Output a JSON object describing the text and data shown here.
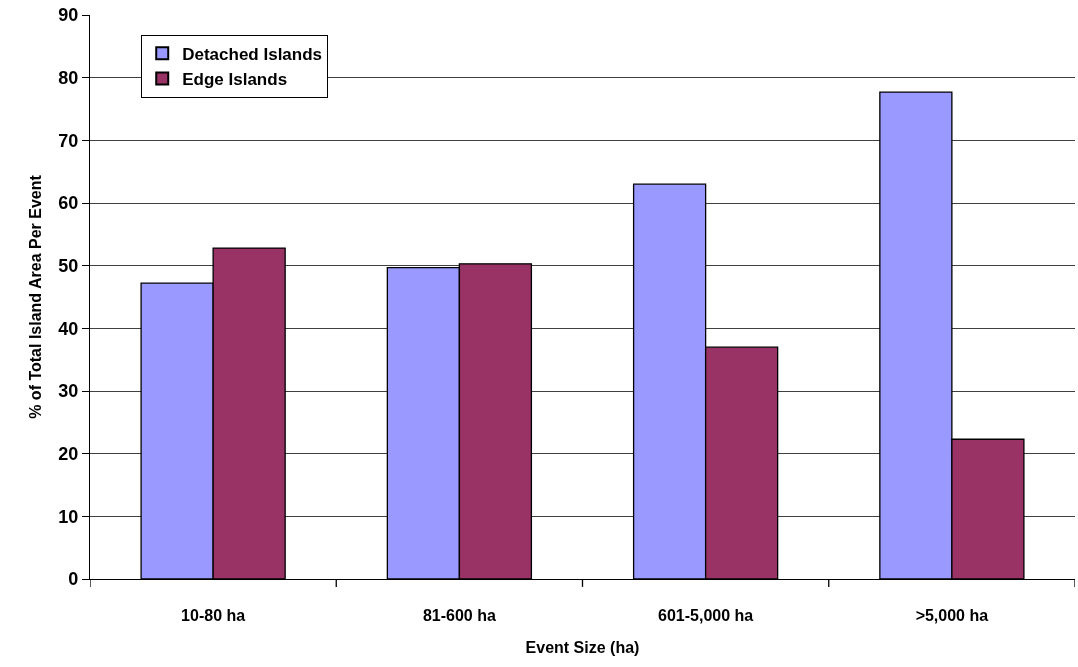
{
  "chart_data": {
    "type": "bar",
    "xlabel": "Event Size (ha)",
    "ylabel": "% of Total Island Area Per Event",
    "categories": [
      "10-80 ha",
      "81-600 ha",
      "601-5,000 ha",
      ">5,000 ha"
    ],
    "series": [
      {
        "name": "Detached Islands",
        "color": "#9999ff",
        "values": [
          47.2,
          49.7,
          63.0,
          77.7
        ]
      },
      {
        "name": "Edge Islands",
        "color": "#993366",
        "values": [
          52.8,
          50.3,
          37.0,
          22.3
        ]
      }
    ],
    "ylim": [
      0,
      90
    ],
    "yticks": [
      0,
      10,
      20,
      30,
      40,
      50,
      60,
      70,
      80,
      90
    ],
    "grid": "y",
    "legend": "top left"
  }
}
